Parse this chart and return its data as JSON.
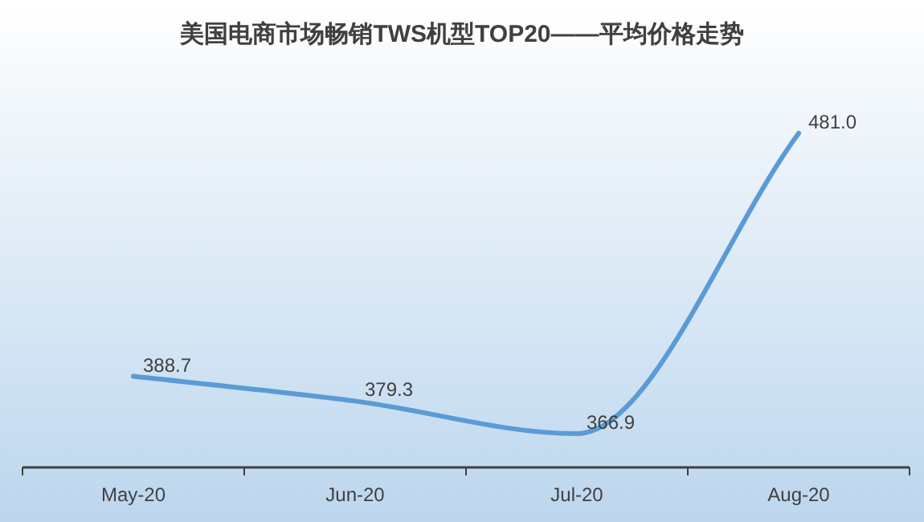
{
  "chart_data": {
    "type": "line",
    "title": "美国电商市场畅销TWS机型TOP20——平均价格走势",
    "categories": [
      "May-20",
      "Jun-20",
      "Jul-20",
      "Aug-20"
    ],
    "series": [
      {
        "color": "#5b9bd5",
        "values": [
          388.7,
          379.3,
          366.9,
          481.0
        ],
        "value_labels": [
          "388.7",
          "379.3",
          "366.9",
          "481.0"
        ]
      }
    ],
    "marker": "none",
    "line_style": "solid"
  }
}
